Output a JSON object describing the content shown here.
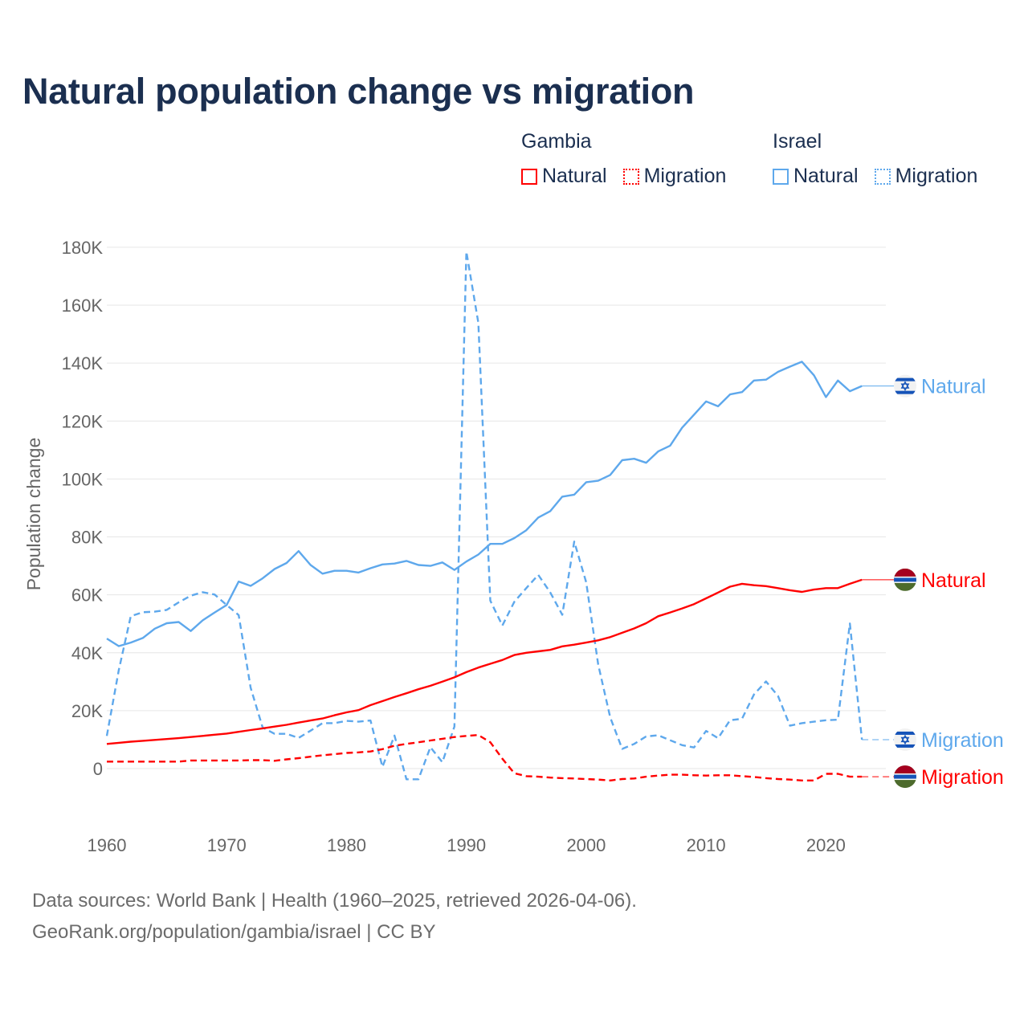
{
  "title": "Natural population change vs migration",
  "legend": [
    {
      "country": "Gambia",
      "items": [
        {
          "label": "Natural",
          "style": "solid"
        },
        {
          "label": "Migration",
          "style": "dotted"
        }
      ],
      "color": "#ff0000"
    },
    {
      "country": "Israel",
      "items": [
        {
          "label": "Natural",
          "style": "solid"
        },
        {
          "label": "Migration",
          "style": "dotted"
        }
      ],
      "color": "#5ea8ec"
    }
  ],
  "footer": {
    "line1": "Data sources: World Bank | Health (1960–2025, retrieved 2026-04-06).",
    "line2": "GeoRank.org/population/gambia/israel | CC BY"
  },
  "chart_data": {
    "type": "line",
    "title": "Natural population change vs migration",
    "xlabel": "",
    "ylabel": "Population change",
    "xlim": [
      1960,
      2025
    ],
    "ylim": [
      -10000,
      180000
    ],
    "xticks": [
      1960,
      1970,
      1980,
      1990,
      2000,
      2010,
      2020
    ],
    "xtick_labels": [
      "1960",
      "1970",
      "1980",
      "1990",
      "2000",
      "2010",
      "2020"
    ],
    "yticks": [
      0,
      20000,
      40000,
      60000,
      80000,
      100000,
      120000,
      140000,
      160000,
      180000
    ],
    "ytick_labels": [
      "0",
      "20K",
      "40K",
      "60K",
      "80K",
      "100K",
      "120K",
      "140K",
      "160K",
      "180K"
    ],
    "grid": true,
    "x_start": 1960,
    "series": [
      {
        "name": "Israel Natural",
        "end_label": "Natural",
        "flag": "israel",
        "color": "#5ea8ec",
        "dash": false,
        "values": [
          44900,
          42300,
          43500,
          45100,
          48300,
          50200,
          50600,
          47500,
          51200,
          53900,
          56500,
          64600,
          63100,
          65700,
          68900,
          71000,
          75100,
          70300,
          67300,
          68300,
          68300,
          67700,
          69200,
          70500,
          70800,
          71700,
          70300,
          70000,
          71200,
          68600,
          71500,
          73900,
          77600,
          77600,
          79600,
          82300,
          86700,
          88900,
          93900,
          94600,
          98900,
          99400,
          101400,
          106500,
          107000,
          105600,
          109500,
          111500,
          117700,
          122200,
          126800,
          125100,
          129200,
          130000,
          134000,
          134300,
          137000,
          138800,
          140500,
          135800,
          128300,
          134000,
          130300,
          132100
        ]
      },
      {
        "name": "Israel Migration",
        "end_label": "Migration",
        "flag": "israel",
        "color": "#5ea8ec",
        "dash": true,
        "values": [
          11300,
          34000,
          52600,
          54000,
          54200,
          54800,
          57400,
          59700,
          60900,
          60100,
          56500,
          53000,
          27900,
          14200,
          12000,
          12000,
          10600,
          13100,
          15700,
          15700,
          16500,
          16200,
          16600,
          600,
          11400,
          -3700,
          -3700,
          7400,
          2200,
          14500,
          178500,
          153900,
          58000,
          49400,
          57600,
          62300,
          66900,
          60800,
          53100,
          78400,
          64300,
          36000,
          17700,
          6800,
          8500,
          11100,
          11500,
          9800,
          8100,
          7300,
          13000,
          10500,
          16700,
          17200,
          25600,
          30100,
          25100,
          14800,
          15700,
          16200,
          16700,
          16900,
          50100,
          10000
        ]
      },
      {
        "name": "Gambia Natural",
        "end_label": "Natural",
        "flag": "gambia",
        "color": "#ff0000",
        "dash": false,
        "values": [
          8500,
          8900,
          9300,
          9600,
          9900,
          10200,
          10500,
          10900,
          11300,
          11700,
          12100,
          12700,
          13300,
          13900,
          14500,
          15100,
          15900,
          16600,
          17300,
          18400,
          19400,
          20200,
          21900,
          23300,
          24700,
          26000,
          27400,
          28600,
          30000,
          31500,
          33300,
          34900,
          36200,
          37500,
          39200,
          40000,
          40500,
          41000,
          42200,
          42800,
          43500,
          44300,
          45400,
          46900,
          48400,
          50200,
          52600,
          53900,
          55300,
          56800,
          58800,
          60800,
          62800,
          63800,
          63300,
          63000,
          62300,
          61600,
          61000,
          61800,
          62300,
          62300,
          63800,
          65200
        ]
      },
      {
        "name": "Gambia Migration",
        "end_label": "Migration",
        "flag": "gambia",
        "color": "#ff0000",
        "dash": true,
        "values": [
          2400,
          2400,
          2400,
          2400,
          2400,
          2400,
          2400,
          2800,
          2800,
          2800,
          2800,
          2800,
          2900,
          2900,
          2700,
          3200,
          3600,
          4100,
          4600,
          5000,
          5400,
          5600,
          5900,
          6700,
          7900,
          8500,
          9100,
          9700,
          10300,
          10900,
          11300,
          11600,
          9100,
          3400,
          -1600,
          -2600,
          -2800,
          -3100,
          -3300,
          -3400,
          -3600,
          -3800,
          -4100,
          -3600,
          -3400,
          -2800,
          -2400,
          -2100,
          -2100,
          -2300,
          -2400,
          -2300,
          -2300,
          -2600,
          -2900,
          -3300,
          -3600,
          -3800,
          -4100,
          -4100,
          -1800,
          -1800,
          -2800,
          -2800
        ]
      }
    ]
  }
}
